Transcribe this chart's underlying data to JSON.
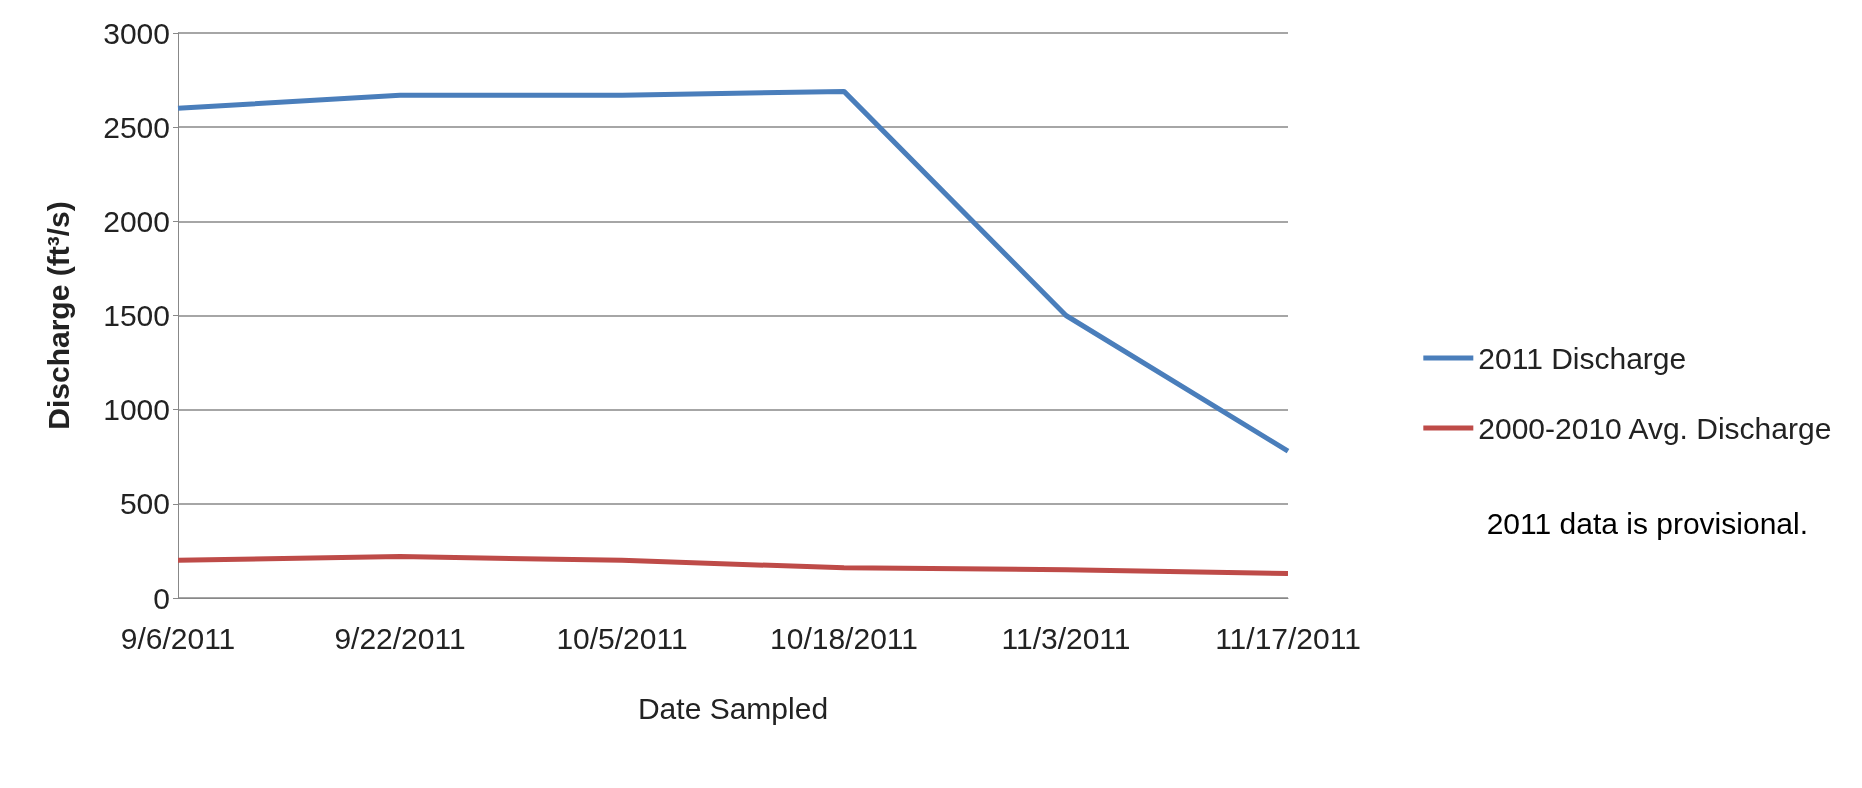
{
  "chart_data": {
    "type": "line",
    "xlabel": "Date Sampled",
    "ylabel": "Discharge (ft³/s)",
    "categories": [
      "9/6/2011",
      "9/22/2011",
      "10/5/2011",
      "10/18/2011",
      "11/3/2011",
      "11/17/2011"
    ],
    "series": [
      {
        "name": "2011 Discharge",
        "color": "#4a7ebb",
        "values": [
          2600,
          2670,
          2670,
          2690,
          1500,
          780
        ]
      },
      {
        "name": "2000-2010 Avg. Discharge",
        "color": "#be4b48",
        "values": [
          200,
          220,
          200,
          160,
          150,
          130
        ]
      }
    ],
    "ylim": [
      0,
      3000
    ],
    "yticks": [
      0,
      500,
      1000,
      1500,
      2000,
      2500,
      3000
    ],
    "grid": "y",
    "legend": "right",
    "marker": "none",
    "line_style": "solid",
    "annotations": [
      "2011 data is provisional."
    ]
  }
}
